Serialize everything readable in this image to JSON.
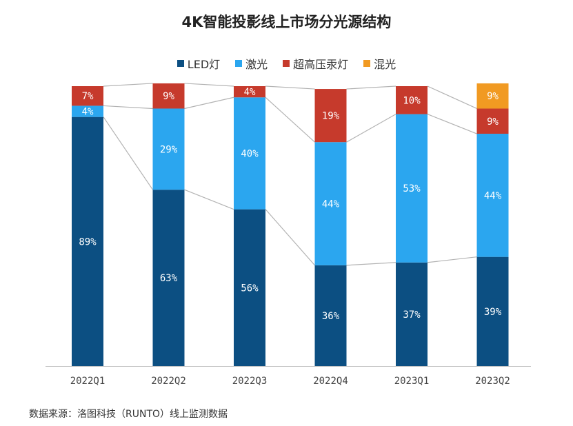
{
  "colors": {
    "led": "#0c4f82",
    "laser": "#2ba6ef",
    "uhp": "#c63a2c",
    "hybrid": "#f19a22",
    "connector": "#b3b3b3",
    "axis": "#bfbfbf",
    "label_text": "#ffffff",
    "tick_text": "#444444"
  },
  "source_note": "数据来源：洛图科技（RUNTO）线上监测数据",
  "chart_data": {
    "type": "bar",
    "stacked": true,
    "title": "4K智能投影线上市场分光源结构",
    "categories": [
      "2022Q1",
      "2022Q2",
      "2022Q3",
      "2022Q4",
      "2023Q1",
      "2023Q2"
    ],
    "ylim": [
      0,
      100
    ],
    "value_suffix": "%",
    "legend_position": "top-center",
    "series": [
      {
        "name": "LED灯",
        "color_key": "led",
        "values": [
          89,
          63,
          56,
          36,
          37,
          39
        ]
      },
      {
        "name": "激光",
        "color_key": "laser",
        "values": [
          4,
          29,
          40,
          44,
          53,
          44
        ]
      },
      {
        "name": "超高压汞灯",
        "color_key": "uhp",
        "values": [
          7,
          9,
          4,
          19,
          10,
          9
        ]
      },
      {
        "name": "混光",
        "color_key": "hybrid",
        "values": [
          0,
          0,
          0,
          0,
          0,
          9
        ]
      }
    ]
  }
}
